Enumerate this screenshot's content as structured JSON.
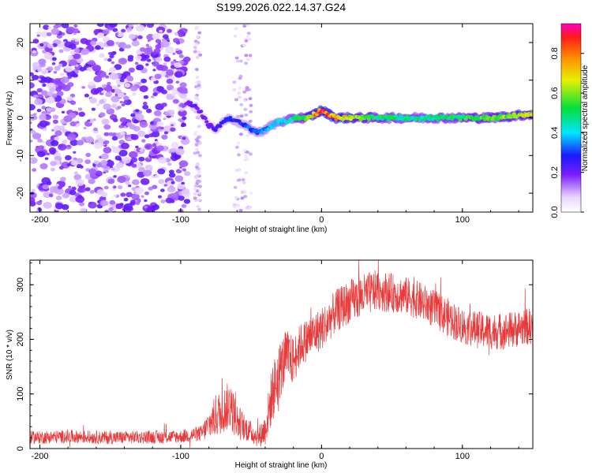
{
  "title": "S199.2026.022.14.37.G24",
  "chart_data": [
    {
      "id": "spectrogram",
      "type": "heatmap",
      "xlabel": "Height of straight line (km)",
      "ylabel": "Frequency (Hz)",
      "xlim": [
        -207,
        150
      ],
      "ylim": [
        -25,
        25
      ],
      "xticks": [
        -200,
        -100,
        0,
        100
      ],
      "yticks": [
        -20,
        -10,
        0,
        10,
        20
      ],
      "colorbar": {
        "label": "Normalized spectral amplitude",
        "range": [
          0.0,
          0.95
        ],
        "ticks": [
          "0.0",
          "0.2",
          "0.4",
          "0.6",
          "0.8"
        ]
      },
      "ridge": {
        "description": "dominant frequency track",
        "x": [
          -100,
          -95,
          -90,
          -85,
          -80,
          -75,
          -70,
          -65,
          -60,
          -55,
          -50,
          -45,
          -40,
          -35,
          -30,
          -25,
          -20,
          -15,
          -10,
          -5,
          0,
          5,
          10,
          20,
          40,
          60,
          80,
          100,
          120,
          150
        ],
        "y": [
          3,
          4,
          3,
          1,
          -2,
          -3,
          -1,
          0,
          -1,
          -2,
          -3,
          -4,
          -3,
          -2,
          -1,
          -1,
          0,
          0,
          0,
          1,
          2,
          1,
          0,
          0,
          0,
          0,
          0,
          0,
          0,
          1
        ],
        "amplitude": [
          0.15,
          0.2,
          0.25,
          0.2,
          0.22,
          0.25,
          0.28,
          0.3,
          0.3,
          0.32,
          0.35,
          0.35,
          0.38,
          0.4,
          0.42,
          0.45,
          0.5,
          0.55,
          0.6,
          0.8,
          0.9,
          0.85,
          0.8,
          0.7,
          0.55,
          0.5,
          0.5,
          0.55,
          0.6,
          0.7
        ]
      },
      "noise_region": "x < -95 km scattered low-amplitude noise across all frequencies"
    },
    {
      "id": "snr",
      "type": "line",
      "xlabel": "Height of straight line (km)",
      "ylabel": "SNR (10 * v/v)",
      "xlim": [
        -207,
        150
      ],
      "ylim": [
        0,
        345
      ],
      "xticks": [
        -200,
        -100,
        0,
        100
      ],
      "yticks": [
        0,
        100,
        200,
        300
      ],
      "series": [
        {
          "name": "SNR",
          "color": "#e83a3a",
          "x": [
            -207,
            -180,
            -150,
            -120,
            -100,
            -85,
            -75,
            -65,
            -60,
            -55,
            -50,
            -45,
            -40,
            -35,
            -30,
            -25,
            -20,
            -15,
            -10,
            -5,
            0,
            10,
            20,
            30,
            40,
            50,
            60,
            70,
            80,
            90,
            100,
            110,
            120,
            130,
            140,
            150
          ],
          "y": [
            20,
            22,
            20,
            21,
            22,
            28,
            60,
            80,
            50,
            40,
            30,
            20,
            35,
            100,
            140,
            170,
            160,
            190,
            200,
            210,
            220,
            250,
            270,
            280,
            290,
            285,
            280,
            270,
            255,
            240,
            225,
            218,
            215,
            215,
            220,
            225
          ],
          "noise_amplitude": [
            12,
            12,
            12,
            12,
            12,
            15,
            40,
            45,
            35,
            25,
            20,
            18,
            30,
            55,
            55,
            50,
            45,
            40,
            40,
            40,
            40,
            40,
            40,
            40,
            38,
            36,
            35,
            35,
            35,
            35,
            34,
            34,
            34,
            34,
            34,
            34
          ]
        }
      ]
    }
  ]
}
